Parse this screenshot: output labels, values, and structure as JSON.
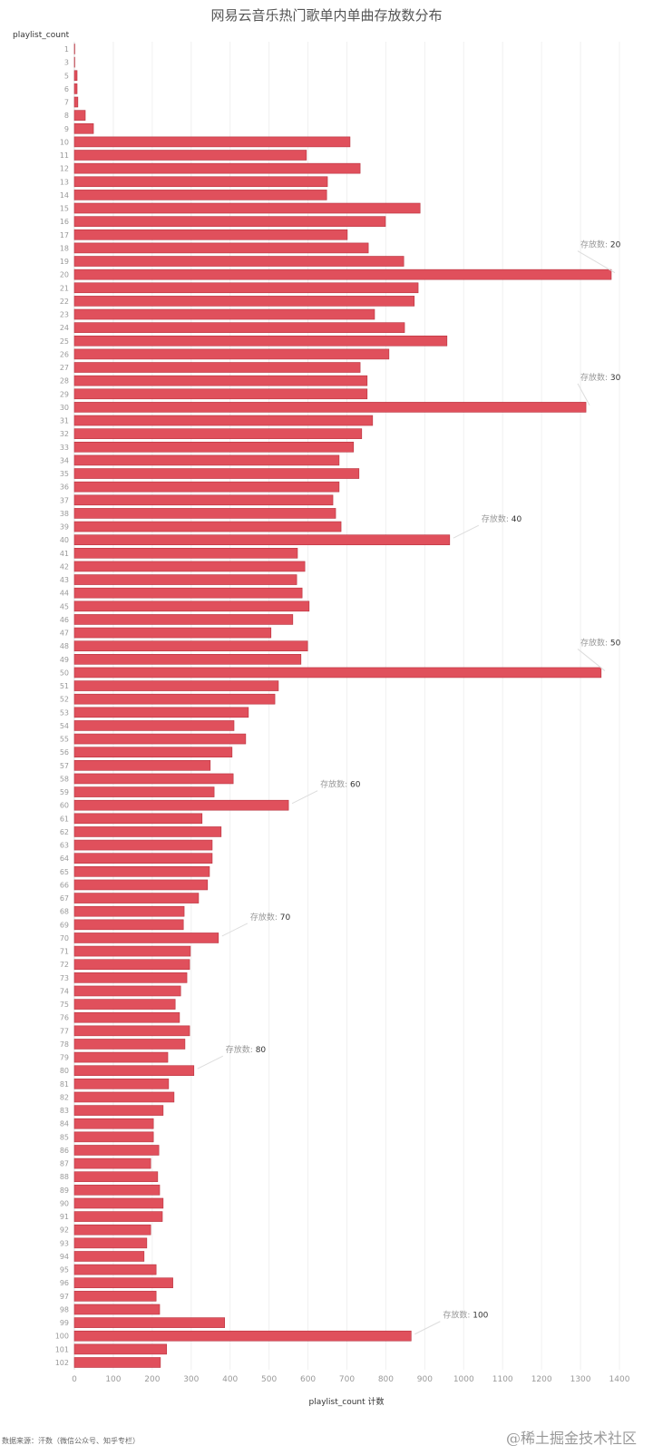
{
  "chart_data": {
    "type": "bar",
    "orientation": "horizontal",
    "title": "网易云音乐热门歌单内单曲存放数分布",
    "ylabel": "playlist_count",
    "xlabel": "playlist_count 计数",
    "xlim": [
      0,
      1400
    ],
    "xticks": [
      0,
      100,
      200,
      300,
      400,
      500,
      600,
      700,
      800,
      900,
      1000,
      1100,
      1200,
      1300,
      1400
    ],
    "grid": true,
    "bar_color": "#e0505c",
    "bar_border": "#b8323e",
    "categories": [
      1,
      3,
      5,
      6,
      7,
      8,
      9,
      10,
      11,
      12,
      13,
      14,
      15,
      16,
      17,
      18,
      19,
      20,
      21,
      22,
      23,
      24,
      25,
      26,
      27,
      28,
      29,
      30,
      31,
      32,
      33,
      34,
      35,
      36,
      37,
      38,
      39,
      40,
      41,
      42,
      43,
      44,
      45,
      46,
      47,
      48,
      49,
      50,
      51,
      52,
      53,
      54,
      55,
      56,
      57,
      58,
      59,
      60,
      61,
      62,
      63,
      64,
      65,
      66,
      67,
      68,
      69,
      70,
      71,
      72,
      73,
      74,
      75,
      76,
      77,
      78,
      79,
      80,
      81,
      82,
      83,
      84,
      85,
      86,
      87,
      88,
      89,
      90,
      91,
      92,
      93,
      94,
      95,
      96,
      97,
      98,
      99,
      100,
      101,
      102
    ],
    "values": [
      1,
      1,
      7,
      7,
      9,
      28,
      49,
      708,
      596,
      734,
      650,
      648,
      888,
      799,
      701,
      755,
      846,
      1379,
      883,
      873,
      771,
      848,
      957,
      808,
      734,
      752,
      752,
      1314,
      766,
      738,
      717,
      680,
      731,
      680,
      664,
      671,
      685,
      964,
      573,
      592,
      571,
      585,
      603,
      561,
      505,
      599,
      582,
      1353,
      524,
      515,
      447,
      410,
      440,
      405,
      349,
      408,
      359,
      550,
      328,
      377,
      354,
      354,
      347,
      342,
      319,
      282,
      280,
      370,
      298,
      296,
      289,
      273,
      259,
      270,
      296,
      284,
      240,
      307,
      242,
      256,
      228,
      203,
      203,
      217,
      196,
      214,
      219,
      228,
      226,
      196,
      186,
      179,
      210,
      253,
      210,
      219,
      386,
      865,
      237,
      221
    ],
    "annotations": [
      {
        "category": 20,
        "prefix": "存放数:",
        "label": "20"
      },
      {
        "category": 30,
        "prefix": "存放数:",
        "label": "30"
      },
      {
        "category": 40,
        "prefix": "存放数:",
        "label": "40"
      },
      {
        "category": 50,
        "prefix": "存放数:",
        "label": "50"
      },
      {
        "category": 60,
        "prefix": "存放数:",
        "label": "60"
      },
      {
        "category": 70,
        "prefix": "存放数:",
        "label": "70"
      },
      {
        "category": 80,
        "prefix": "存放数:",
        "label": "80"
      },
      {
        "category": 100,
        "prefix": "存放数:",
        "label": "100"
      }
    ]
  },
  "footer": "数据来源：汗数（微信公众号、知乎专栏）",
  "watermark": "@稀土掘金技术社区"
}
